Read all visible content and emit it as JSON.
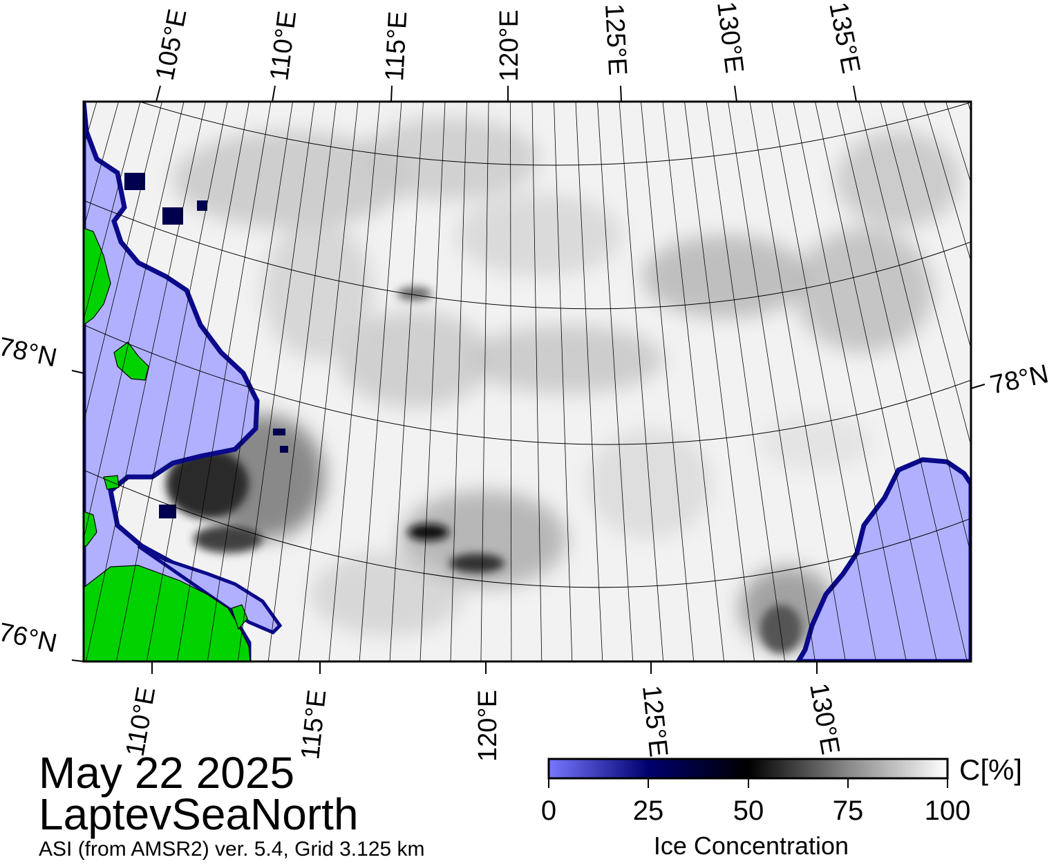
{
  "map": {
    "date_label": "May 22 2025",
    "region_label": "LaptevSeaNorth",
    "product_label": "ASI (from AMSR2) ver. 5.4,  Grid 3.125 km",
    "top_lon_labels": [
      "105°E",
      "110°E",
      "115°E",
      "120°E",
      "125°E",
      "130°E",
      "135°E"
    ],
    "bottom_lon_labels": [
      "110°E",
      "115°E",
      "120°E",
      "125°E",
      "130°E"
    ],
    "lat_labels_left": [
      "78°N",
      "76°N"
    ],
    "lat_labels_right": [
      "78°N"
    ],
    "colors": {
      "water": "#b0b0ff",
      "land": "#00d200",
      "ice_high": "#ffffff",
      "ice_mid": "#9a9a9a",
      "low_conc": "#000060",
      "frame": "#000000"
    }
  },
  "colorbar": {
    "title": "Ice Concentration",
    "unit": "C[%]",
    "ticks": [
      "0",
      "25",
      "50",
      "75",
      "100"
    ],
    "stops": [
      "#7777ff",
      "#00006e",
      "#000000",
      "#888888",
      "#ffffff"
    ]
  }
}
